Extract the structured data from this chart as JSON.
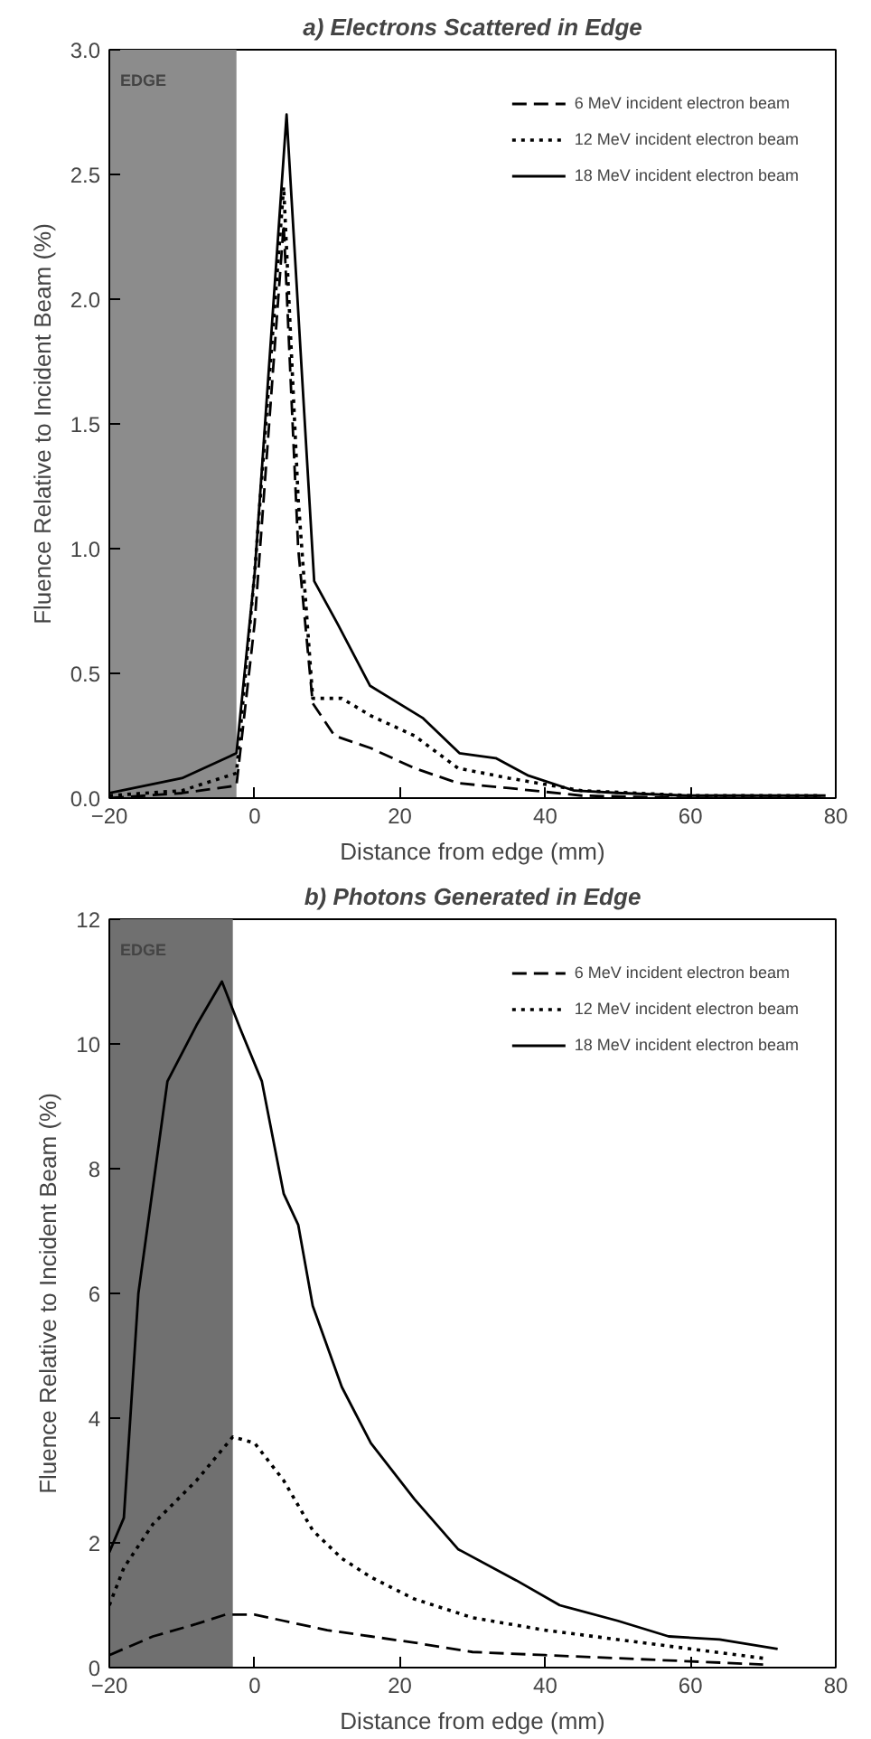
{
  "chart_data": [
    {
      "type": "line",
      "title": "a) Electrons Scattered in Edge",
      "xlabel": "Distance from edge (mm)",
      "ylabel": "Fluence Relative to Incident Beam (%)",
      "xlim": [
        -20,
        80
      ],
      "xticks": [
        -20,
        0,
        20,
        40,
        60,
        80
      ],
      "ylim": [
        0,
        3
      ],
      "yticks": [
        {
          "value": 0,
          "label": "0.0"
        },
        0.5,
        {
          "value": 1,
          "label": "1.0"
        },
        1.5,
        {
          "value": 2,
          "label": "2.0"
        },
        2.5,
        {
          "value": 3,
          "label": "3.0"
        }
      ],
      "grid": false,
      "legend": "top right",
      "bands": [
        {
          "axis": "x",
          "from": -20,
          "to": -2.5,
          "label": "EDGE",
          "color": "#8c8c8c"
        }
      ],
      "series": [
        {
          "name": "6 MeV incident electron beam",
          "color": "#000000",
          "line_style": "dashed",
          "x": [
            -20,
            -10,
            -2.5,
            0,
            4,
            6,
            8,
            11,
            16,
            22,
            28,
            35,
            45,
            60,
            78
          ],
          "values": [
            0.0,
            0.02,
            0.05,
            0.7,
            2.3,
            1.0,
            0.38,
            0.25,
            0.2,
            0.12,
            0.06,
            0.04,
            0.01,
            0.0,
            0.0
          ]
        },
        {
          "name": "12 MeV incident electron beam",
          "color": "#000000",
          "line_style": "dotted",
          "x": [
            -20,
            -10,
            -2.5,
            0,
            4,
            6,
            8,
            12,
            16,
            22,
            28,
            35,
            45,
            60,
            78
          ],
          "values": [
            0.01,
            0.03,
            0.1,
            0.9,
            2.45,
            1.2,
            0.4,
            0.4,
            0.33,
            0.25,
            0.12,
            0.08,
            0.03,
            0.01,
            0.01
          ]
        },
        {
          "name": "18 MeV incident electron beam",
          "color": "#000000",
          "line_style": "solid",
          "x": [
            -20,
            -10,
            -2.5,
            0,
            4.4,
            8.2,
            11.4,
            15.9,
            23.2,
            28.2,
            33.2,
            37.7,
            44,
            50.5,
            59.5,
            78.6
          ],
          "values": [
            0.02,
            0.08,
            0.18,
            0.9,
            2.74,
            0.87,
            0.7,
            0.45,
            0.32,
            0.18,
            0.16,
            0.09,
            0.03,
            0.02,
            0.01,
            0.01
          ]
        }
      ]
    },
    {
      "type": "line",
      "title": "b) Photons Generated in Edge",
      "xlabel": "Distance from edge (mm)",
      "ylabel": "Fluence Relative to Incident Beam (%)",
      "xlim": [
        -20,
        80
      ],
      "xticks": [
        -20,
        0,
        20,
        40,
        60,
        80
      ],
      "ylim": [
        0,
        12
      ],
      "yticks": [
        0,
        2,
        4,
        6,
        8,
        10,
        12
      ],
      "grid": false,
      "legend": "top right",
      "bands": [
        {
          "axis": "x",
          "from": -20,
          "to": -3,
          "label": "EDGE",
          "color": "#707070"
        }
      ],
      "series": [
        {
          "name": "6 MeV incident electron beam",
          "color": "#000000",
          "line_style": "dashed",
          "x": [
            -20,
            -14,
            -8,
            -4,
            0,
            4,
            10,
            16,
            22,
            30,
            40,
            50,
            60,
            70
          ],
          "values": [
            0.2,
            0.5,
            0.7,
            0.85,
            0.85,
            0.75,
            0.6,
            0.5,
            0.4,
            0.25,
            0.2,
            0.15,
            0.1,
            0.05
          ]
        },
        {
          "name": "12 MeV incident electron beam",
          "color": "#000000",
          "line_style": "dotted",
          "x": [
            -20,
            -18,
            -14,
            -8,
            -3,
            0,
            4,
            8,
            12,
            16,
            22,
            30,
            40,
            50,
            60,
            70
          ],
          "values": [
            1.0,
            1.6,
            2.3,
            3.0,
            3.7,
            3.6,
            3.0,
            2.2,
            1.75,
            1.45,
            1.1,
            0.8,
            0.6,
            0.45,
            0.3,
            0.15
          ]
        },
        {
          "name": "18 MeV incident electron beam",
          "color": "#000000",
          "line_style": "solid",
          "x": [
            -20,
            -18,
            -16,
            -12,
            -8,
            -4.5,
            -2,
            1,
            4,
            6,
            8,
            12,
            16,
            22,
            28,
            36,
            42,
            50,
            57,
            64,
            72
          ],
          "values": [
            1.85,
            2.4,
            6.0,
            9.4,
            10.3,
            11.0,
            10.25,
            9.4,
            7.6,
            7.1,
            5.8,
            4.5,
            3.6,
            2.7,
            1.9,
            1.4,
            1.0,
            0.75,
            0.5,
            0.45,
            0.3
          ]
        }
      ]
    }
  ]
}
